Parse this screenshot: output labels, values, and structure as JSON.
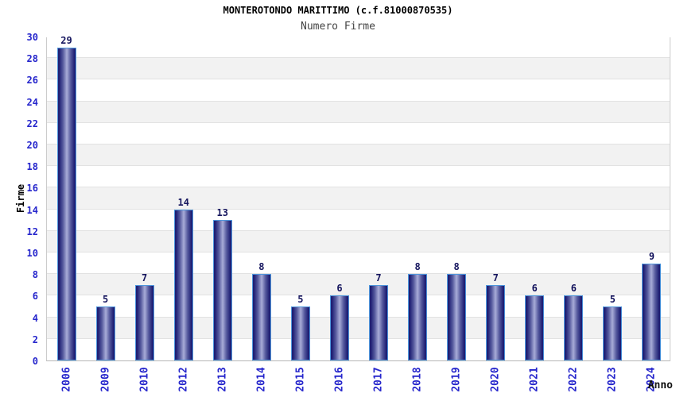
{
  "chart_data": {
    "type": "bar",
    "title": "MONTEROTONDO MARITTIMO (c.f.81000870535)",
    "subtitle": "Numero Firme",
    "xlabel": "Anno",
    "ylabel": "Firme",
    "categories": [
      "2006",
      "2009",
      "2010",
      "2012",
      "2013",
      "2014",
      "2015",
      "2016",
      "2017",
      "2018",
      "2019",
      "2020",
      "2021",
      "2022",
      "2023",
      "2024"
    ],
    "values": [
      29,
      5,
      7,
      14,
      13,
      8,
      5,
      6,
      7,
      8,
      8,
      7,
      6,
      6,
      5,
      9
    ],
    "ylim": [
      0,
      30
    ],
    "ytick_step": 2,
    "grid": "horizontal bands alternating white and light gray, gridline every 2 units",
    "legend": "none",
    "colors": {
      "bar_dark": "#1f1f74",
      "bar_mid": "#565a9e",
      "bar_light": "#a8acd8",
      "bar_border": "#4f97dd",
      "tick_label_blue": "#2626cc",
      "value_label_navy": "#15155e",
      "band_gray": "#f2f2f2",
      "grid_line": "#e2e2e2",
      "plot_border": "#cccccc",
      "title_black": "#000000",
      "subtitle_gray": "#444444"
    }
  }
}
